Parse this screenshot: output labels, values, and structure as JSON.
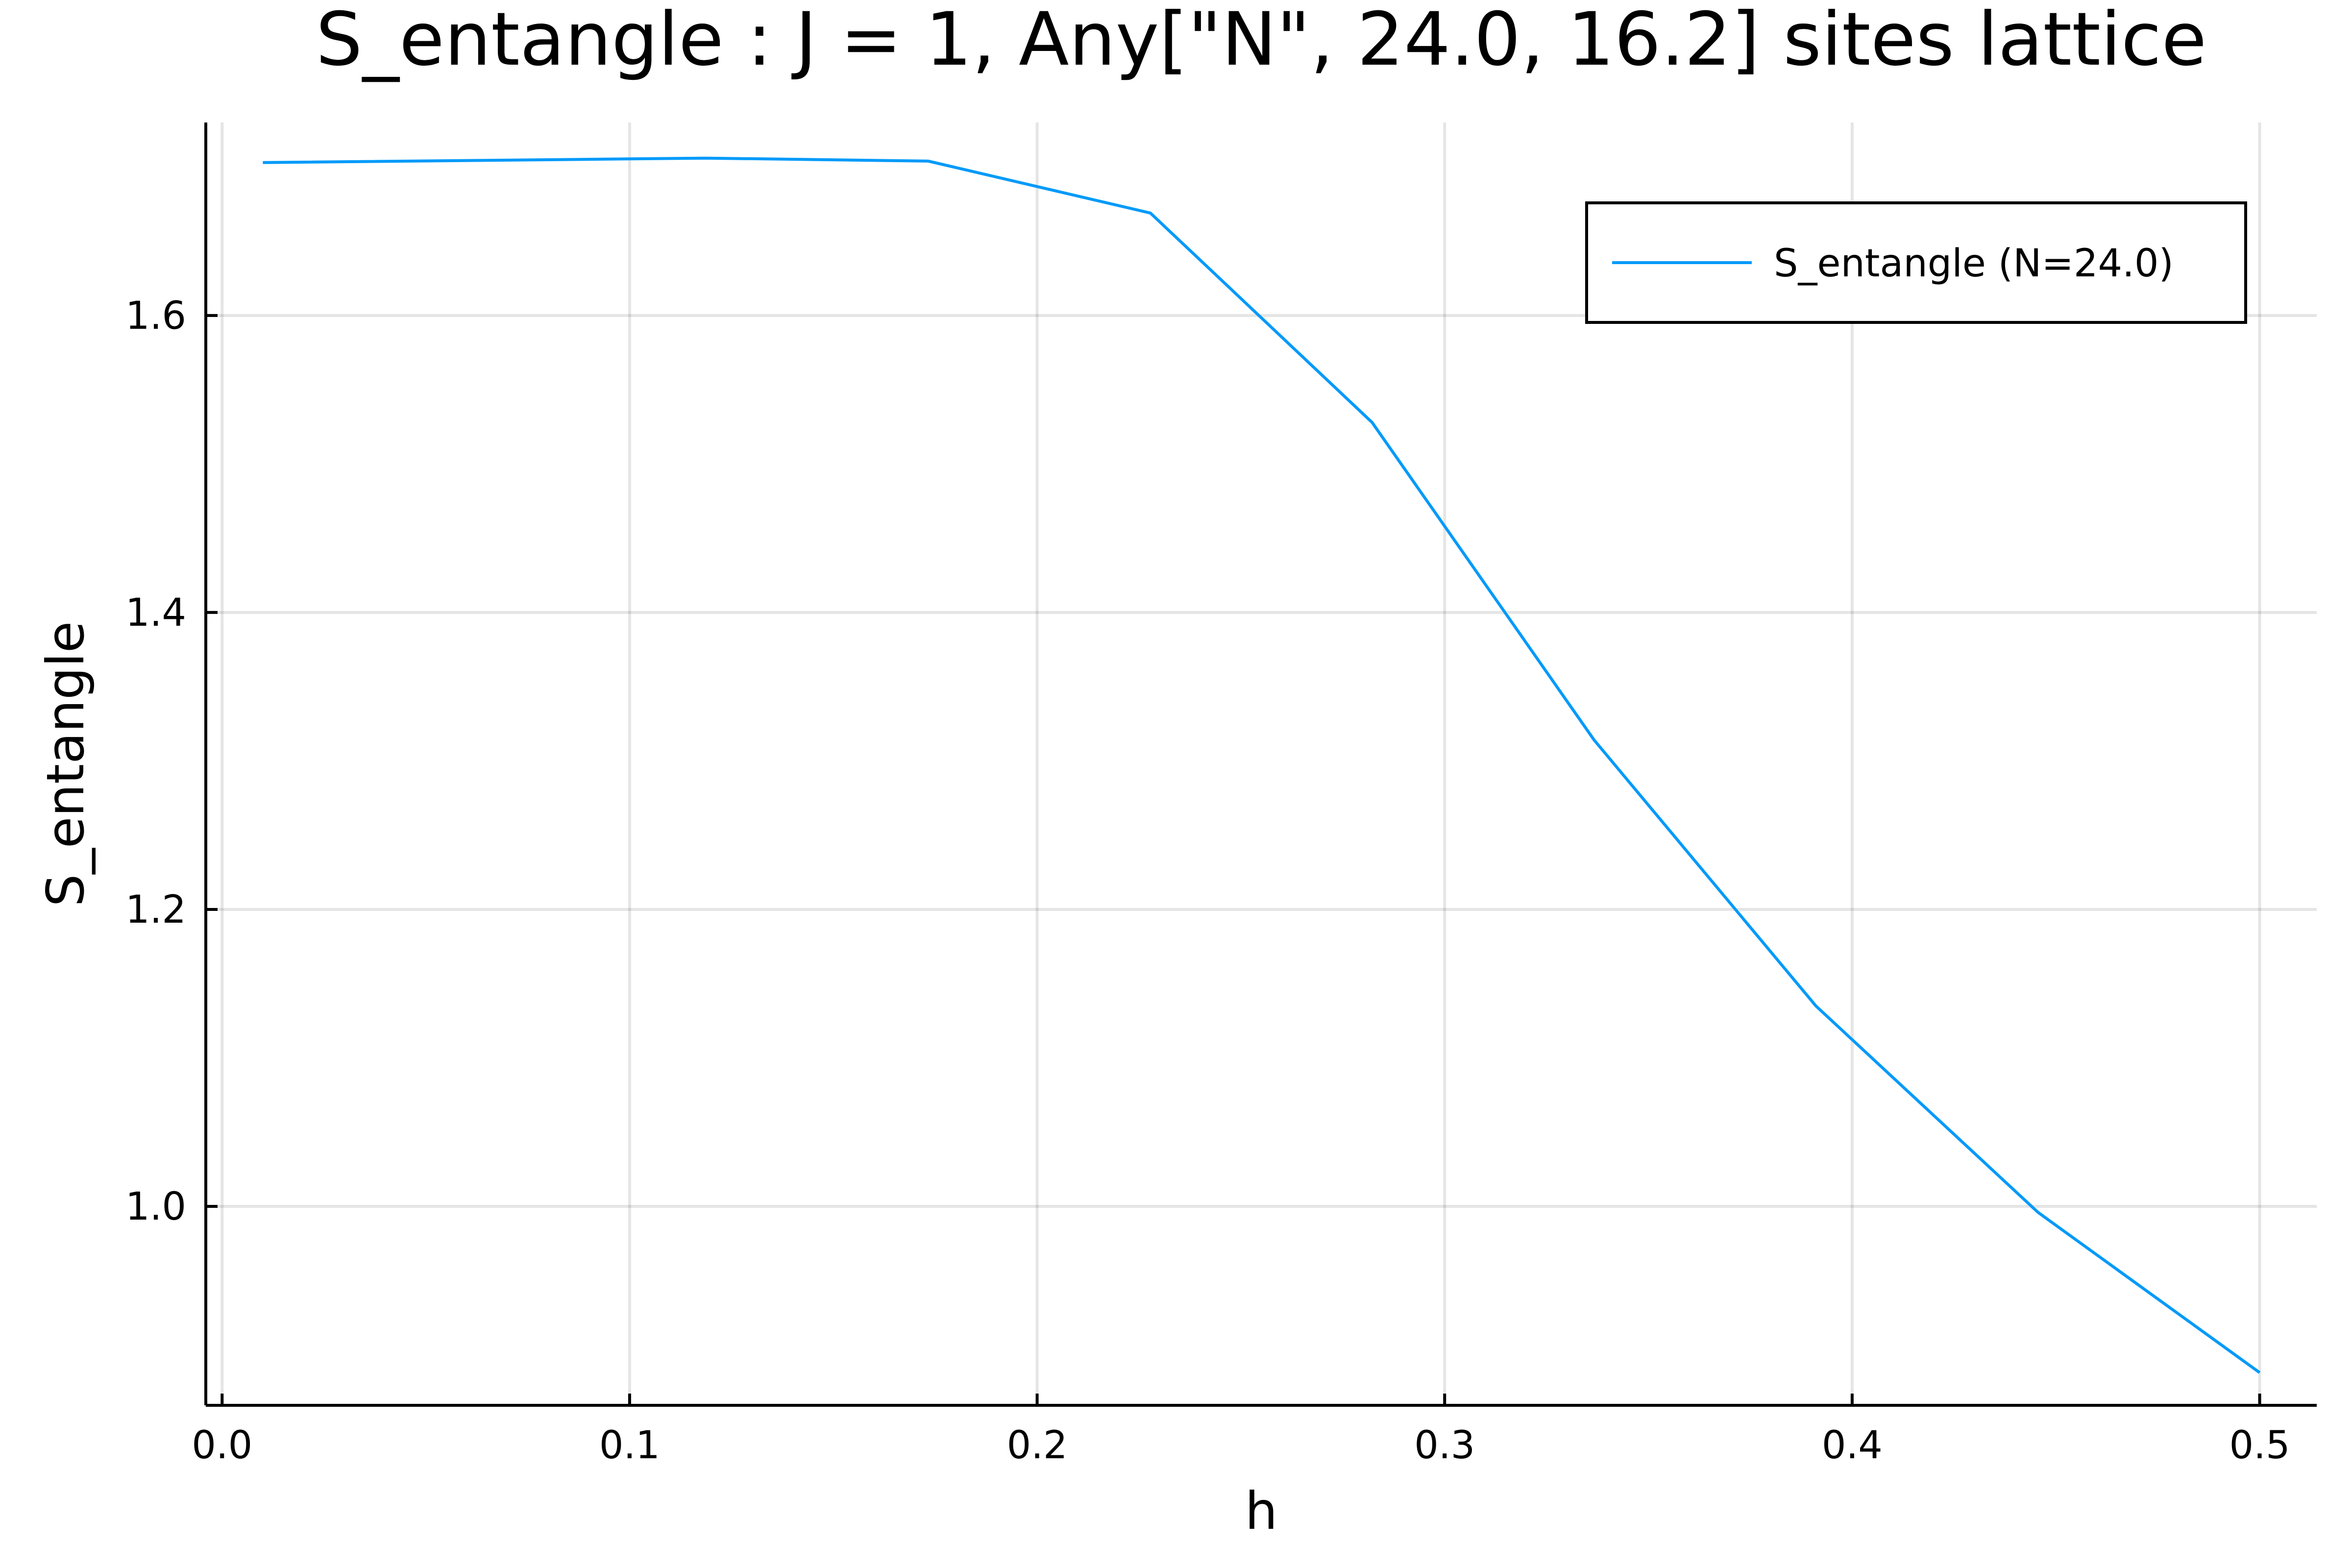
{
  "chart_data": {
    "type": "line",
    "title": "S_entangle : J = 1, Any[\"N\", 24.0, 16.2] sites lattice",
    "xlabel": "h",
    "ylabel": "S_entangle",
    "xlim": [
      -0.004,
      0.514
    ],
    "ylim": [
      0.866,
      1.73
    ],
    "xticks": [
      0.0,
      0.1,
      0.2,
      0.3,
      0.4,
      0.5
    ],
    "xtick_labels": [
      "0.0",
      "0.1",
      "0.2",
      "0.3",
      "0.4",
      "0.5"
    ],
    "yticks": [
      1.0,
      1.2,
      1.4,
      1.6
    ],
    "ytick_labels": [
      "1.0",
      "1.2",
      "1.4",
      "1.6"
    ],
    "grid": true,
    "legend_position": "top-right",
    "series": [
      {
        "name": "S_entangle (N=24.0)",
        "color": "#009af9",
        "x": [
          0.01,
          0.1189,
          0.1733,
          0.2278,
          0.2822,
          0.3367,
          0.3911,
          0.4456,
          0.5
        ],
        "y": [
          1.703,
          1.706,
          1.704,
          1.669,
          1.528,
          1.314,
          1.135,
          0.996,
          0.888
        ]
      }
    ]
  }
}
